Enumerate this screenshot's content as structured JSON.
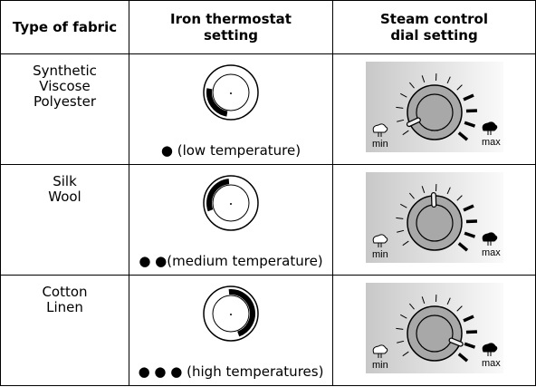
{
  "table": {
    "header": [
      [
        "Type of fabric"
      ],
      [
        "Iron thermostat",
        "setting"
      ],
      [
        "Steam control",
        "dial setting"
      ]
    ],
    "rows": [
      {
        "fabric": [
          "Synthetic",
          "Viscose",
          "Polyester"
        ],
        "thermostat": "● (low temperature)",
        "steam": {
          "min": "min",
          "max": "max"
        }
      },
      {
        "fabric": [
          "Silk",
          "Wool"
        ],
        "thermostat": "● ●(medium temperature)",
        "steam": {
          "min": "min",
          "max": "max"
        }
      },
      {
        "fabric": [
          "Cotton",
          "Linen"
        ],
        "thermostat": "● ● ● (high temperatures)",
        "steam": {
          "min": "min",
          "max": "max"
        }
      }
    ]
  }
}
